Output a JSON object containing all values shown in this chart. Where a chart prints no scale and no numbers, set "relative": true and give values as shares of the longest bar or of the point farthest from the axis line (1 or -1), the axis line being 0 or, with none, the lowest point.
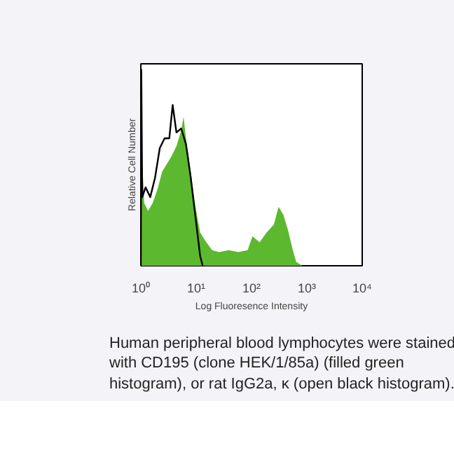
{
  "chart_data": {
    "type": "area",
    "relative": true,
    "log": "x",
    "xlabel": "Log Fluoresence Intensity",
    "ylabel": "Relative Cell Number",
    "xlim": [
      1,
      10000
    ],
    "xticks": [
      {
        "value": 1,
        "label": "10⁰"
      },
      {
        "value": 10,
        "label": "10¹"
      },
      {
        "value": 100,
        "label": "10²"
      },
      {
        "value": 1000,
        "label": "10³"
      },
      {
        "value": 10000,
        "label": "10⁴"
      }
    ],
    "series": [
      {
        "color": "#5cb82e",
        "x": [
          1,
          1.02,
          1.15,
          1.35,
          1.64,
          2.0,
          2.43,
          2.97,
          3.61,
          4.4,
          5.37,
          5.92,
          6.54,
          7.97,
          9.7,
          11.8,
          14.4,
          19.4,
          26,
          38.7,
          57.5,
          85,
          104,
          140,
          188,
          253,
          308,
          376,
          458,
          558,
          641,
          828
        ],
        "values": [
          0,
          0.63,
          0.32,
          0.28,
          0.32,
          0.39,
          0.48,
          0.52,
          0.56,
          0.61,
          0.69,
          0.76,
          0.65,
          0.48,
          0.3,
          0.17,
          0.13,
          0.08,
          0.07,
          0.08,
          0.07,
          0.08,
          0.15,
          0.12,
          0.17,
          0.21,
          0.3,
          0.26,
          0.18,
          0.08,
          0.02,
          0
        ]
      },
      {
        "type": "line",
        "color": "#000000",
        "x": [
          1,
          1.02,
          1.06,
          1.22,
          1.48,
          1.81,
          2.2,
          2.69,
          3.27,
          3.76,
          4.4,
          5.37,
          6.54,
          7.97,
          9.7,
          11.8,
          13.1
        ],
        "values": [
          0,
          1.0,
          0.35,
          0.4,
          0.35,
          0.45,
          0.6,
          0.65,
          0.65,
          0.82,
          0.68,
          0.7,
          0.62,
          0.45,
          0.25,
          0.05,
          0
        ]
      }
    ],
    "annotations": [
      "Human peripheral blood lymphocytes were stained with CD195 (clone HEK/1/85a) (filled green histogram), or rat IgG2a, κ (open black histogram)."
    ]
  }
}
